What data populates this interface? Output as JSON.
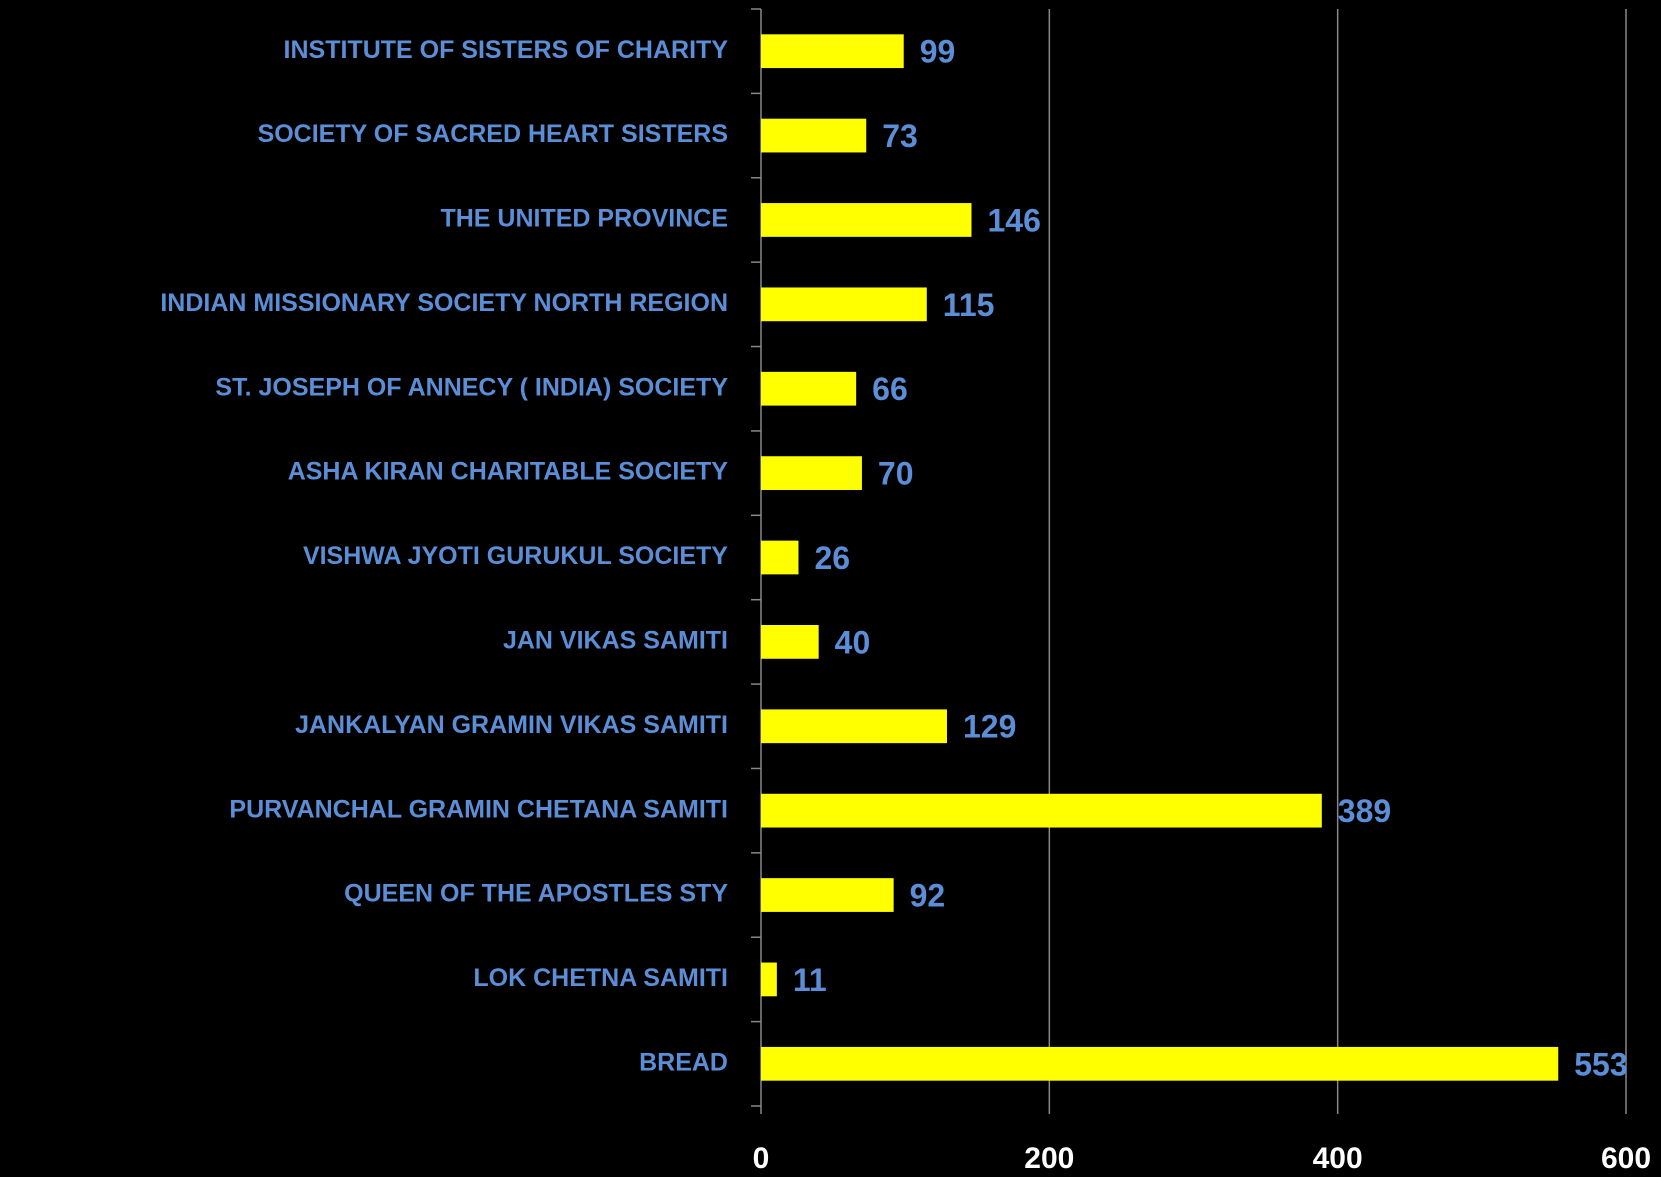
{
  "chart_data": {
    "type": "bar",
    "orientation": "horizontal",
    "categories": [
      "INSTITUTE OF SISTERS OF CHARITY",
      "SOCIETY OF SACRED HEART SISTERS",
      "THE UNITED PROVINCE",
      "INDIAN MISSIONARY SOCIETY NORTH REGION",
      "ST. JOSEPH OF ANNECY ( INDIA) SOCIETY",
      "ASHA KIRAN CHARITABLE SOCIETY",
      "VISHWA JYOTI GURUKUL SOCIETY",
      "JAN VIKAS SAMITI",
      "JANKALYAN GRAMIN VIKAS SAMITI",
      "PURVANCHAL GRAMIN CHETANA SAMITI",
      "QUEEN OF THE APOSTLES STY",
      "LOK CHETNA SAMITI",
      "BREAD"
    ],
    "values": [
      99,
      73,
      146,
      115,
      66,
      70,
      26,
      40,
      129,
      389,
      92,
      11,
      553
    ],
    "color": "#ffff00",
    "xlim": [
      0,
      600
    ],
    "xticks": [
      0,
      200,
      400,
      600
    ],
    "grid": true
  }
}
